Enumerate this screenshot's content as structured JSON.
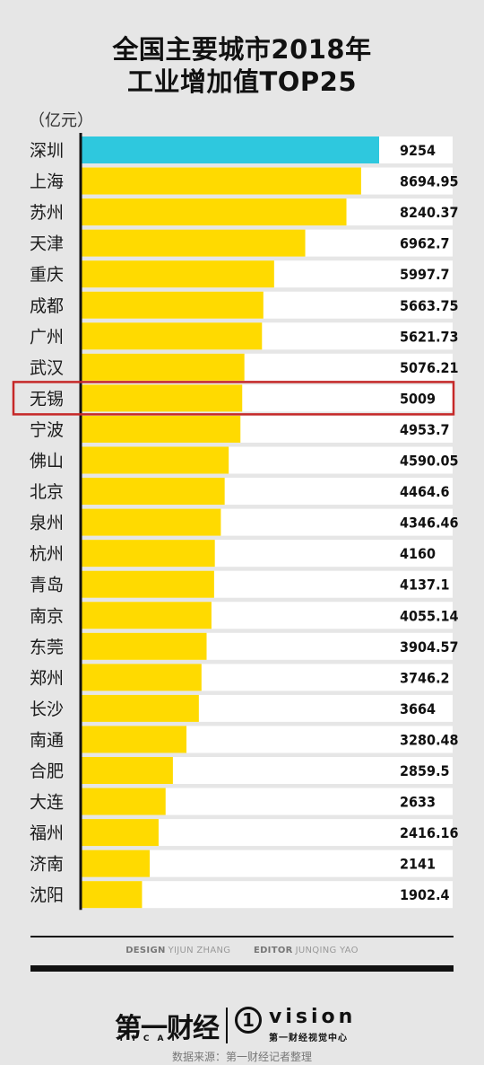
{
  "title_line1": "全国主要城市2018年",
  "title_line2": "工业增加值TOP25",
  "unit": "（亿元）",
  "chart_data": {
    "type": "bar",
    "orientation": "horizontal",
    "title": "全国主要城市2018年 工业增加值TOP25",
    "unit": "（亿元）",
    "categories": [
      "深圳",
      "上海",
      "苏州",
      "天津",
      "重庆",
      "成都",
      "广州",
      "武汉",
      "无锡",
      "宁波",
      "佛山",
      "北京",
      "泉州",
      "杭州",
      "青岛",
      "南京",
      "东莞",
      "郑州",
      "长沙",
      "南通",
      "合肥",
      "大连",
      "福州",
      "济南",
      "沈阳"
    ],
    "values": [
      9254,
      8694.95,
      8240.37,
      6962.7,
      5997.7,
      5663.75,
      5621.73,
      5076.21,
      5009,
      4953.7,
      4590.05,
      4464.6,
      4346.46,
      4160,
      4137.1,
      4055.14,
      3904.57,
      3746.2,
      3664,
      3280.48,
      2859.5,
      2633,
      2416.16,
      2141,
      1902.4
    ],
    "value_labels": [
      "9254",
      "8694.95",
      "8240.37",
      "6962.7",
      "5997.7",
      "5663.75",
      "5621.73",
      "5076.21",
      "5009",
      "4953.7",
      "4590.05",
      "4464.6",
      "4346.46",
      "4160",
      "4137.1",
      "4055.14",
      "3904.57",
      "3746.2",
      "3664",
      "3280.48",
      "2859.5",
      "2633",
      "2416.16",
      "2141",
      "1902.4"
    ],
    "highlighted_index": 0,
    "boxed_index": 8,
    "colors": {
      "bar": "#FFDA00",
      "highlight_bar": "#2EC8DE",
      "track": "#FFFFFF",
      "box": "#C62828",
      "axis": "#111111"
    }
  },
  "credits": {
    "design_label": "DESIGN",
    "design_name": "YIJUN ZHANG",
    "editor_label": "EDITOR",
    "editor_name": "JUNQING YAO"
  },
  "logos": {
    "brand1": "第一财经",
    "brand1_sub": "YICAI",
    "brand2_mark": "1",
    "brand2": "vision",
    "brand2_sub": "第一财经视觉中心"
  },
  "source": "数据来源：第一财经记者整理"
}
